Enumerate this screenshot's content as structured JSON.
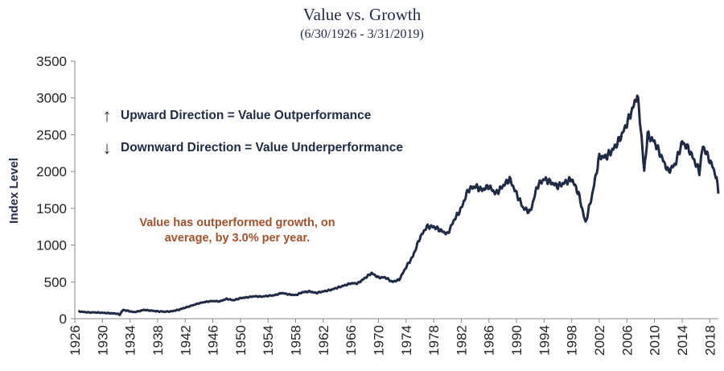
{
  "chart_data": {
    "type": "line",
    "title": "Value vs. Growth",
    "subtitle": "(6/30/1926 - 3/31/2019)",
    "ylabel": "Index Level",
    "xlabel": "",
    "xlim": [
      1926,
      2019.25
    ],
    "ylim": [
      0,
      3500
    ],
    "yticks": [
      0,
      500,
      1000,
      1500,
      2000,
      2500,
      3000,
      3500
    ],
    "xticks": [
      1926,
      1930,
      1934,
      1938,
      1942,
      1946,
      1950,
      1954,
      1958,
      1962,
      1966,
      1970,
      1974,
      1978,
      1982,
      1986,
      1990,
      1994,
      1998,
      2002,
      2006,
      2010,
      2014,
      2018
    ],
    "grid": false,
    "line_color": "#1f2a44",
    "annotations": {
      "up_arrow": "↑",
      "up_text": "Upward Direction = Value Outperformance",
      "down_arrow": "↓",
      "down_text": "Downward Direction = Value Underperformance",
      "note_line1": "Value has outperformed growth, on",
      "note_line2": "average, by 3.0% per year.",
      "note_color": "#a0522d"
    },
    "series": [
      {
        "x": [
          1926.5,
          1927,
          1928,
          1929,
          1930,
          1931,
          1932,
          1932.5,
          1933,
          1933.5,
          1934,
          1934.5,
          1935,
          1936,
          1937,
          1938,
          1939,
          1940,
          1941,
          1942,
          1943,
          1944,
          1945,
          1946,
          1947,
          1948,
          1949,
          1950,
          1951,
          1952,
          1953,
          1954,
          1955,
          1956,
          1957,
          1958,
          1959,
          1960,
          1961,
          1962,
          1963,
          1964,
          1965,
          1966,
          1967,
          1968,
          1969,
          1970,
          1971,
          1972,
          1973,
          1974,
          1975,
          1976,
          1977,
          1978,
          1979,
          1980,
          1981,
          1982,
          1983,
          1984,
          1985,
          1986,
          1987,
          1988,
          1989,
          1990,
          1991,
          1992,
          1993,
          1994,
          1995,
          1996,
          1997,
          1998,
          1999,
          2000,
          2001,
          2002,
          2003,
          2004,
          2005,
          2006,
          2007,
          2007.5,
          2008,
          2008.5,
          2009,
          2010,
          2011,
          2012,
          2013,
          2014,
          2015,
          2016,
          2016.5,
          2017,
          2018,
          2018.5,
          2019,
          2019.25
        ],
        "y": [
          100,
          95,
          85,
          85,
          80,
          75,
          70,
          55,
          120,
          110,
          100,
          90,
          95,
          120,
          110,
          100,
          95,
          100,
          120,
          150,
          180,
          210,
          230,
          240,
          235,
          270,
          250,
          280,
          290,
          305,
          300,
          310,
          320,
          350,
          330,
          320,
          360,
          370,
          350,
          370,
          390,
          420,
          450,
          480,
          480,
          550,
          620,
          560,
          560,
          500,
          530,
          700,
          850,
          1100,
          1250,
          1250,
          1200,
          1150,
          1350,
          1500,
          1750,
          1800,
          1750,
          1800,
          1700,
          1800,
          1900,
          1700,
          1500,
          1450,
          1800,
          1900,
          1850,
          1800,
          1850,
          1900,
          1700,
          1300,
          1700,
          2200,
          2200,
          2300,
          2450,
          2650,
          2900,
          3050,
          2600,
          2000,
          2500,
          2400,
          2200,
          2000,
          2100,
          2400,
          2300,
          2100,
          2000,
          2350,
          2150,
          2050,
          1900,
          1700
        ]
      }
    ]
  }
}
